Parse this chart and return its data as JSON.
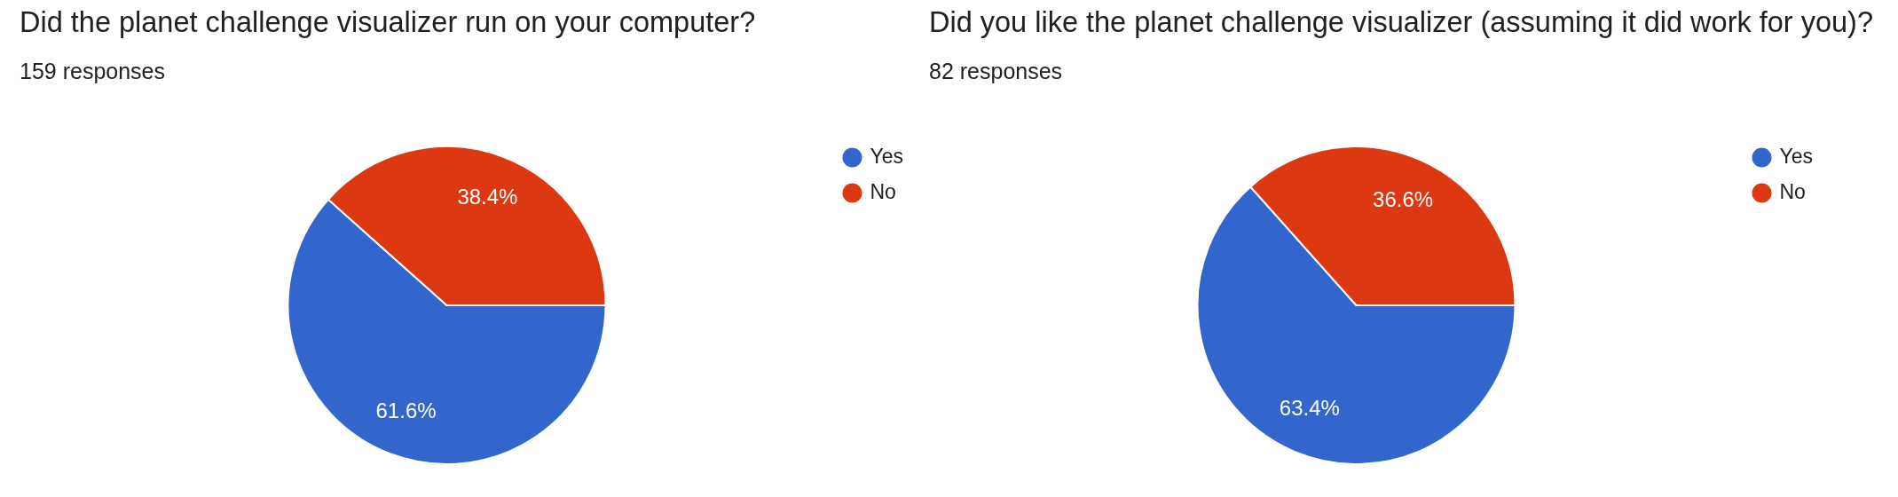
{
  "chart_data": [
    {
      "type": "pie",
      "title": "Did the planet challenge visualizer run on your computer?",
      "subtitle": "159 responses",
      "categories": [
        "Yes",
        "No"
      ],
      "values": [
        61.6,
        38.4
      ],
      "colors": [
        "#3366cc",
        "#dc3912"
      ],
      "value_labels": [
        "61.6%",
        "38.4%"
      ],
      "legend": "top right"
    },
    {
      "type": "pie",
      "title": "Did you like the planet challenge visualizer (assuming it did work for you)?",
      "subtitle": "82 responses",
      "categories": [
        "Yes",
        "No"
      ],
      "values": [
        63.4,
        36.6
      ],
      "colors": [
        "#3366cc",
        "#dc3912"
      ],
      "value_labels": [
        "63.4%",
        "36.6%"
      ],
      "legend": "top right"
    }
  ]
}
